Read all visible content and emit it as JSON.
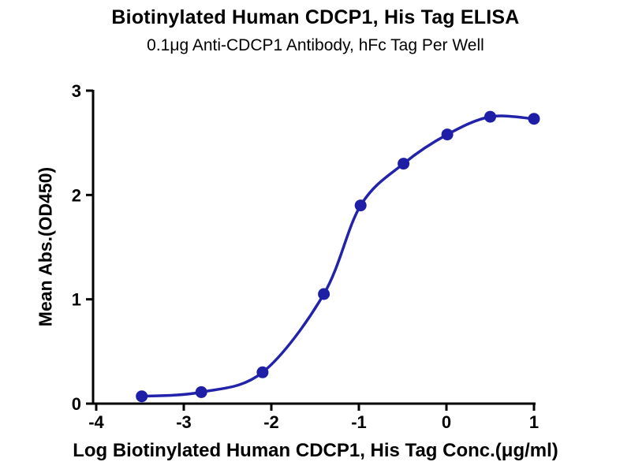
{
  "chart_data": {
    "type": "scatter",
    "curve_fit": "sigmoidal dose-response (4PL)",
    "title": "Biotinylated Human CDCP1, His Tag ELISA",
    "subtitle": "0.1μg Anti-CDCP1 Antibody, hFc Tag Per Well",
    "xlabel": "Log Biotinylated Human CDCP1, His Tag Conc.(μg/ml)",
    "ylabel": "Mean Abs.(OD450)",
    "xlim": [
      -4,
      1
    ],
    "ylim": [
      0,
      3
    ],
    "x_ticks": [
      -4,
      -3,
      -2,
      -1,
      0,
      1
    ],
    "y_ticks": [
      0,
      1,
      2,
      3
    ],
    "grid": false,
    "legend": "none",
    "points": {
      "x": [
        -3.48,
        -2.8,
        -2.1,
        -1.4,
        -0.98,
        -0.49,
        0.01,
        0.5,
        1.0
      ],
      "y": [
        0.07,
        0.11,
        0.3,
        1.05,
        1.9,
        2.3,
        2.58,
        2.75,
        2.73
      ]
    },
    "colors": {
      "curve": "#2222aa",
      "marker": "#1e1ea6",
      "axis": "#000000",
      "text": "#000000"
    }
  }
}
